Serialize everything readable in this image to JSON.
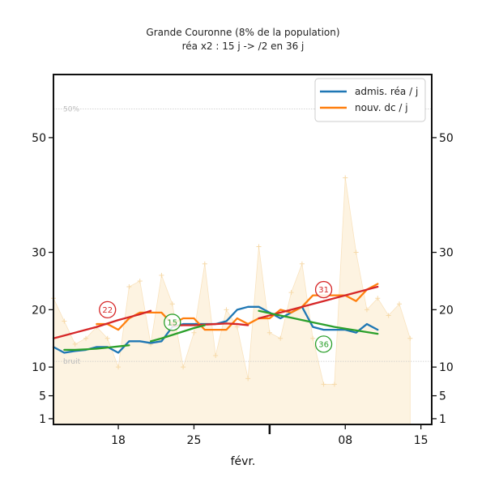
{
  "chart_data": {
    "type": "line",
    "title": "Grande Couronne (8% de la population)",
    "subtitle": "réa x2 : 15 j -> /2 en 36 j",
    "xlabel": "févr.",
    "x_ticks": [
      {
        "day": 18,
        "label": "18"
      },
      {
        "day": 25,
        "label": "25"
      },
      {
        "day": 39,
        "label": "08"
      },
      {
        "day": 46,
        "label": "15"
      }
    ],
    "x_range_days": [
      12,
      47
    ],
    "y_ticks": [
      1,
      5,
      10,
      20,
      30,
      50
    ],
    "y_range": [
      0,
      61
    ],
    "y_axis_both_sides": true,
    "reference_lines": [
      {
        "label": "50%",
        "value": 55
      },
      {
        "label": "bruit",
        "value": 11
      }
    ],
    "legend": {
      "placement": "top-right",
      "entries": [
        {
          "label": "admis. réa / j",
          "color": "#1f77b4"
        },
        {
          "label": "nouv. dc / j",
          "color": "#ff7f0e"
        }
      ]
    },
    "series": [
      {
        "name": "admis. réa / j",
        "color": "#1f77b4",
        "x": [
          12,
          13,
          14,
          15,
          16,
          17,
          18,
          19,
          20,
          21,
          22,
          23,
          24,
          25,
          26,
          27,
          28,
          29,
          30,
          31,
          32,
          33,
          34,
          35,
          36,
          37,
          38,
          39,
          40,
          41,
          42
        ],
        "y": [
          13.5,
          12.5,
          12.8,
          13,
          13.5,
          13.5,
          12.5,
          14.5,
          14.5,
          14.2,
          14.5,
          17,
          17.5,
          17.5,
          17.5,
          17.5,
          18,
          20,
          20.5,
          20.5,
          19.5,
          18.5,
          19.5,
          20.5,
          17,
          16.5,
          16.5,
          16.5,
          16,
          17.5,
          16.5
        ]
      },
      {
        "name": "nouv. dc / j",
        "color": "#ff7f0e",
        "x": [
          16,
          17,
          18,
          19,
          20,
          21,
          22,
          23,
          24,
          25,
          26,
          27,
          28,
          29,
          30,
          31,
          32,
          33,
          34,
          35,
          36,
          37,
          38,
          39,
          40,
          41,
          42
        ],
        "y": [
          17.5,
          17.5,
          16.5,
          18.5,
          19.5,
          19.5,
          19.5,
          17.5,
          18.5,
          18.5,
          16.5,
          16.5,
          16.5,
          18.5,
          17.5,
          18.5,
          18.5,
          20,
          19.5,
          20.5,
          22.5,
          22.5,
          22.5,
          22.5,
          21.5,
          23.5,
          24.5
        ]
      },
      {
        "name": "",
        "color": "#d62728",
        "x": [
          12,
          13,
          14,
          15,
          16,
          17,
          18,
          19,
          20,
          21
        ],
        "y": [
          15,
          15.5,
          16,
          16.5,
          17,
          17.6,
          18.2,
          18.7,
          19.2,
          19.8
        ]
      },
      {
        "name": "",
        "color": "#d62728",
        "x": [
          23,
          24,
          25,
          26,
          27,
          28,
          29,
          30
        ],
        "y": [
          17.2,
          17.3,
          17.3,
          17.4,
          17.5,
          17.6,
          17.5,
          17.3
        ]
      },
      {
        "name": "",
        "color": "#d62728",
        "x": [
          31,
          32,
          33,
          34,
          35,
          36,
          37,
          38,
          39,
          40,
          41,
          42
        ],
        "y": [
          18.5,
          19,
          19.5,
          20,
          20.5,
          21,
          21.5,
          22,
          22.5,
          23,
          23.5,
          24
        ]
      },
      {
        "name": "",
        "color": "#2ca02c",
        "x": [
          13,
          14,
          15,
          16,
          17,
          18,
          19
        ],
        "y": [
          13,
          13,
          13.1,
          13.2,
          13.4,
          13.6,
          13.8
        ]
      },
      {
        "name": "",
        "color": "#2ca02c",
        "x": [
          21,
          22,
          23,
          24,
          25,
          26
        ],
        "y": [
          14.5,
          15,
          15.6,
          16.2,
          16.8,
          17.3
        ]
      },
      {
        "name": "",
        "color": "#2ca02c",
        "x": [
          31,
          32,
          33,
          34,
          35,
          36,
          37,
          38,
          39,
          40,
          41,
          42
        ],
        "y": [
          19.8,
          19.4,
          19,
          18.6,
          18.2,
          17.8,
          17.4,
          17,
          16.7,
          16.4,
          16.1,
          15.8
        ]
      }
    ],
    "background_series": {
      "color": "#fdf3e1",
      "marker_color": "#f6d9a8",
      "x": [
        12,
        13,
        14,
        15,
        16,
        17,
        18,
        19,
        20,
        21,
        22,
        23,
        24,
        25,
        26,
        27,
        28,
        29,
        30,
        31,
        32,
        33,
        34,
        35,
        36,
        37,
        38,
        39,
        40,
        41,
        42,
        43,
        44,
        45
      ],
      "y": [
        22,
        18,
        14,
        15,
        17,
        15,
        10,
        24,
        25,
        14,
        26,
        21,
        10,
        16,
        28,
        12,
        20,
        17,
        8,
        31,
        16,
        15,
        23,
        28,
        15,
        7,
        7,
        43,
        30,
        20,
        22,
        19,
        21,
        15
      ]
    },
    "annotations": [
      {
        "text": "22",
        "x": 17,
        "y": 20,
        "color": "#d62728"
      },
      {
        "text": "15",
        "x": 23,
        "y": 17.8,
        "color": "#2ca02c"
      },
      {
        "text": "31",
        "x": 37,
        "y": 23.5,
        "color": "#d62728"
      },
      {
        "text": "36",
        "x": 37,
        "y": 14,
        "color": "#2ca02c"
      }
    ]
  }
}
